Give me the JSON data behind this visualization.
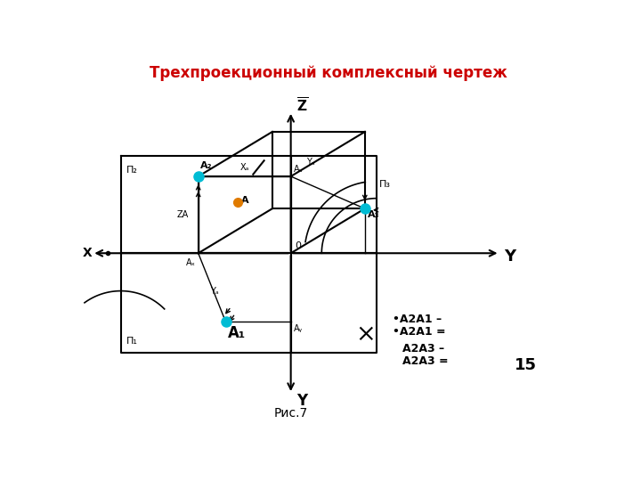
{
  "title": "Трехпроекционный комплексный чертеж",
  "title_color": "#cc0000",
  "title_fontsize": 12,
  "background_color": "#ffffff",
  "fig_caption": "Рис.7",
  "page_number": "15",
  "bullet_A2A1_1": "•A2A1 –",
  "bullet_A2A1_2": "•A2A1 =",
  "A2A3_1": "A2A3 –",
  "A2A3_2": "A2A3 =",
  "ox": 305,
  "oy": 285,
  "vx": 305,
  "lw": 1.5
}
